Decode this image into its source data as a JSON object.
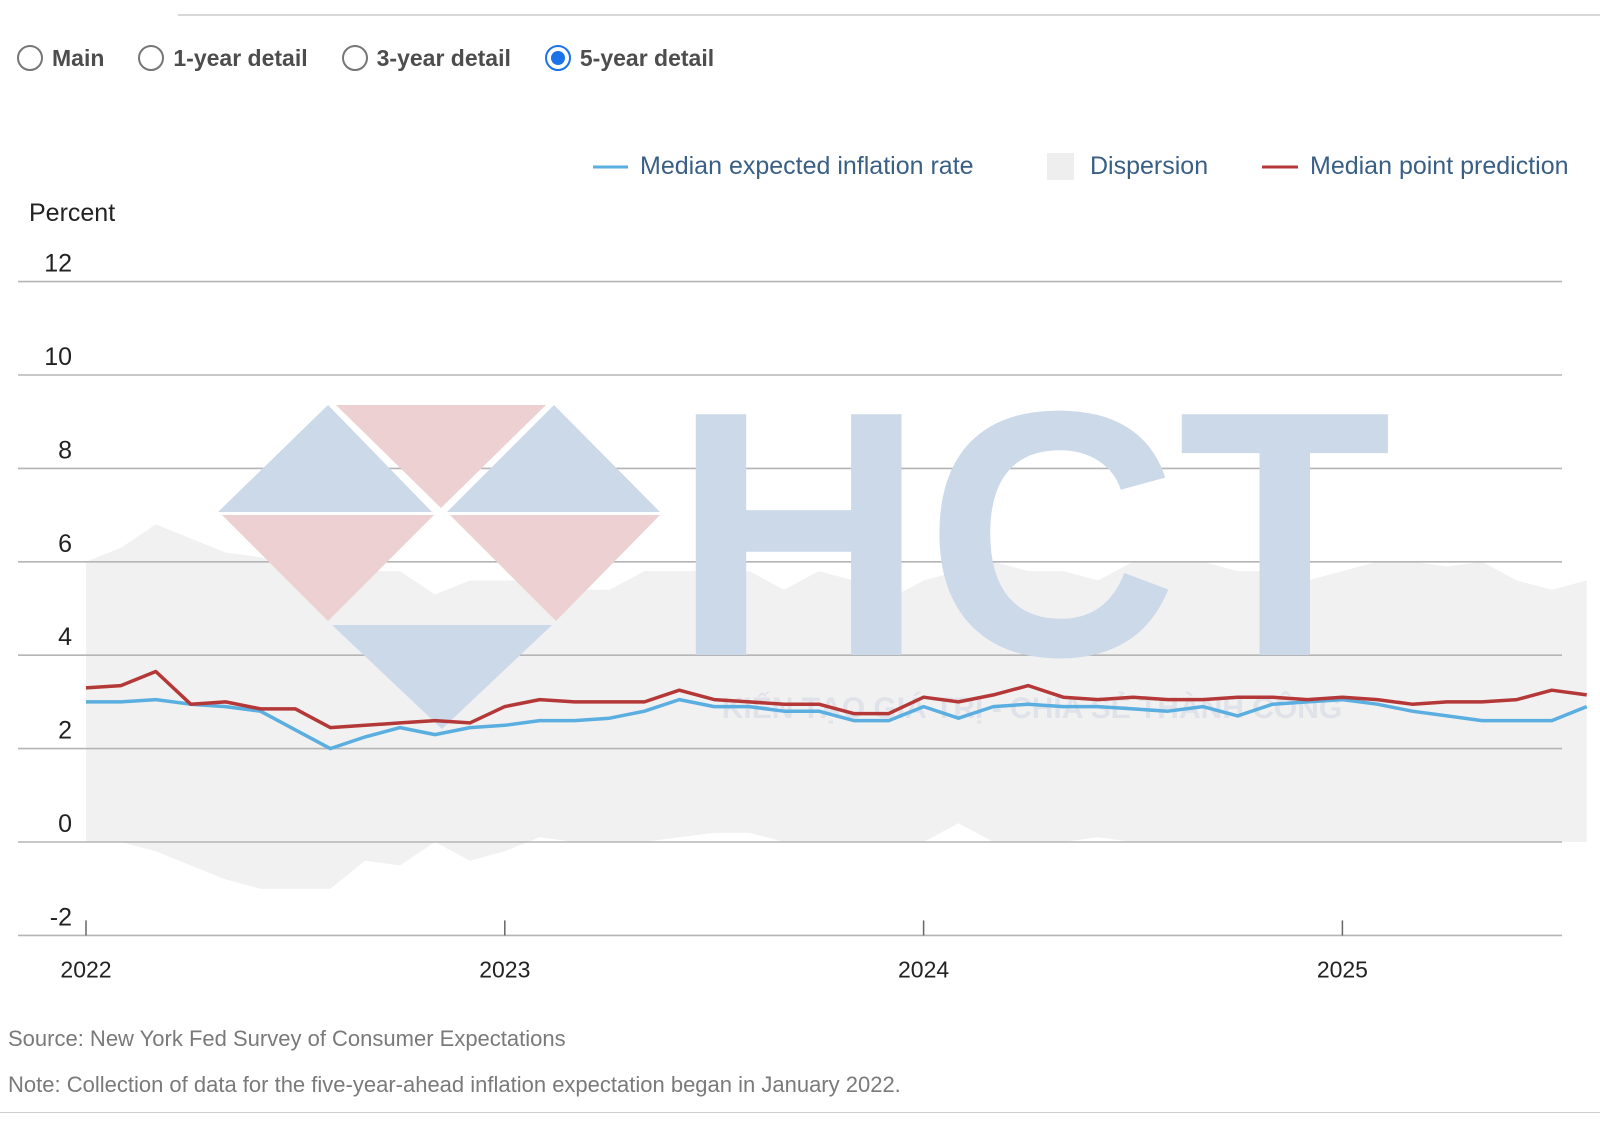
{
  "view_options": {
    "items": [
      {
        "label": "Main",
        "checked": false
      },
      {
        "label": "1-year detail",
        "checked": false
      },
      {
        "label": "3-year detail",
        "checked": false
      },
      {
        "label": "5-year detail",
        "checked": true
      }
    ]
  },
  "watermark": {
    "logo_text": "HCT",
    "tagline": "KIẾN TẠO GIÁ TRỊ - CHIA SẺ THÀNH CÔNG"
  },
  "footer": {
    "source": "Source: New York Fed Survey of Consumer Expectations",
    "note": "Note: Collection of data for the five-year-ahead inflation expectation began in January 2022."
  },
  "chart_data": {
    "type": "line",
    "ylabel": "Percent",
    "ylim": [
      -2,
      12
    ],
    "yticks": [
      -2,
      0,
      2,
      4,
      6,
      8,
      10,
      12
    ],
    "x_tick_labels": [
      "2022",
      "2023",
      "2024",
      "2025"
    ],
    "x_start": "2022-01",
    "grid": true,
    "legend_position": "top-right",
    "x": [
      "2022-01",
      "2022-02",
      "2022-03",
      "2022-04",
      "2022-05",
      "2022-06",
      "2022-07",
      "2022-08",
      "2022-09",
      "2022-10",
      "2022-11",
      "2022-12",
      "2023-01",
      "2023-02",
      "2023-03",
      "2023-04",
      "2023-05",
      "2023-06",
      "2023-07",
      "2023-08",
      "2023-09",
      "2023-10",
      "2023-11",
      "2023-12",
      "2024-01",
      "2024-02",
      "2024-03",
      "2024-04",
      "2024-05",
      "2024-06",
      "2024-07",
      "2024-08",
      "2024-09",
      "2024-10",
      "2024-11",
      "2024-12",
      "2025-01",
      "2025-02",
      "2025-03",
      "2025-04",
      "2025-05",
      "2025-06",
      "2025-07",
      "2025-08"
    ],
    "series": [
      {
        "name": "Median expected inflation rate",
        "type": "line",
        "color": "#5aaee0",
        "values": [
          3.0,
          3.0,
          3.05,
          2.95,
          2.9,
          2.8,
          2.4,
          2.0,
          2.25,
          2.45,
          2.3,
          2.45,
          2.5,
          2.6,
          2.6,
          2.65,
          2.8,
          3.05,
          2.9,
          2.9,
          2.8,
          2.8,
          2.6,
          2.6,
          2.9,
          2.65,
          2.9,
          2.95,
          2.9,
          2.9,
          2.85,
          2.8,
          2.9,
          2.7,
          2.95,
          3.0,
          3.05,
          2.95,
          2.8,
          2.7,
          2.6,
          2.6,
          2.6,
          2.9
        ]
      },
      {
        "name": "Median point prediction",
        "type": "line",
        "color": "#b53838",
        "values": [
          3.3,
          3.35,
          3.65,
          2.95,
          3.0,
          2.85,
          2.85,
          2.45,
          2.5,
          2.55,
          2.6,
          2.55,
          2.9,
          3.05,
          3.0,
          3.0,
          3.0,
          3.25,
          3.05,
          3.0,
          2.95,
          2.95,
          2.75,
          2.75,
          3.1,
          3.0,
          3.15,
          3.35,
          3.1,
          3.05,
          3.1,
          3.05,
          3.05,
          3.1,
          3.1,
          3.05,
          3.1,
          3.05,
          2.95,
          3.0,
          3.0,
          3.05,
          3.25,
          3.15
        ]
      },
      {
        "name": "Dispersion",
        "type": "band",
        "color": "#f1f1f1",
        "upper": [
          6.0,
          6.3,
          6.8,
          6.5,
          6.2,
          6.1,
          5.8,
          5.6,
          5.8,
          5.8,
          5.3,
          5.6,
          5.6,
          5.6,
          5.4,
          5.4,
          5.8,
          5.8,
          5.8,
          5.8,
          5.4,
          5.8,
          5.6,
          5.2,
          5.6,
          5.8,
          6.0,
          5.8,
          5.8,
          5.6,
          6.0,
          6.0,
          6.0,
          5.8,
          5.8,
          5.6,
          5.8,
          6.0,
          6.0,
          5.9,
          6.0,
          5.6,
          5.4,
          5.6
        ],
        "lower": [
          0.0,
          0.0,
          -0.2,
          -0.5,
          -0.8,
          -1.0,
          -1.0,
          -1.0,
          -0.4,
          -0.5,
          0.0,
          -0.4,
          -0.2,
          0.1,
          0.0,
          0.0,
          0.0,
          0.1,
          0.2,
          0.2,
          0.0,
          0.0,
          0.0,
          0.0,
          0.0,
          0.4,
          0.0,
          0.0,
          0.0,
          0.1,
          0.0,
          0.0,
          0.0,
          0.0,
          0.0,
          0.0,
          0.0,
          0.0,
          0.0,
          0.0,
          0.0,
          0.0,
          0.0,
          0.0
        ]
      }
    ]
  }
}
